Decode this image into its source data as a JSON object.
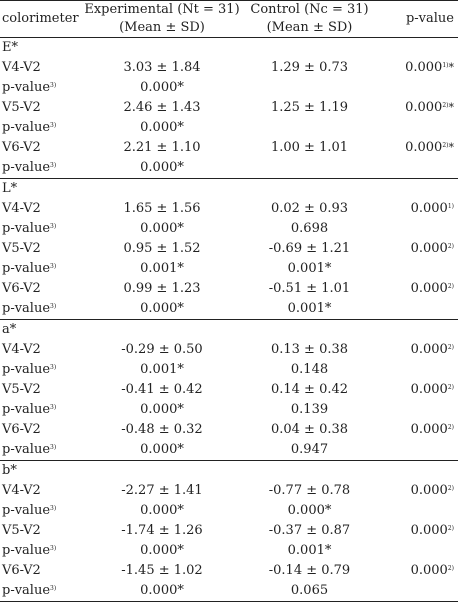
{
  "header": {
    "col_label": "colorimeter",
    "exp_line1": "Experimental (Nt = 31)",
    "exp_line2": "(Mean ± SD)",
    "ctrl_line1": "Control (Nc = 31)",
    "ctrl_line2": "(Mean ± SD)",
    "pvalue_label": "p-value"
  },
  "sections": [
    {
      "title": "E*",
      "rows": [
        {
          "label": "V4-V2",
          "exp": "3.03 ± 1.84",
          "ctrl": "1.29 ± 0.73",
          "p": "0.000",
          "p_sup": "1)",
          "p_star": "*"
        },
        {
          "label": "p-value",
          "label_sup": "3)",
          "exp": "0.000*",
          "ctrl": "",
          "p": "",
          "p_sup": "",
          "p_star": ""
        },
        {
          "label": "V5-V2",
          "exp": "2.46 ± 1.43",
          "ctrl": "1.25 ± 1.19",
          "p": "0.000",
          "p_sup": "2)",
          "p_star": "*"
        },
        {
          "label": "p-value",
          "label_sup": "3)",
          "exp": "0.000*",
          "ctrl": "",
          "p": "",
          "p_sup": "",
          "p_star": ""
        },
        {
          "label": "V6-V2",
          "exp": "2.21 ± 1.10",
          "ctrl": "1.00 ± 1.01",
          "p": "0.000",
          "p_sup": "2)",
          "p_star": "*"
        },
        {
          "label": "p-value",
          "label_sup": "3)",
          "exp": "0.000*",
          "ctrl": "",
          "p": "",
          "p_sup": "",
          "p_star": ""
        }
      ]
    },
    {
      "title": "L*",
      "rows": [
        {
          "label": "V4-V2",
          "exp": "1.65 ± 1.56",
          "ctrl": "0.02 ± 0.93",
          "p": "0.000",
          "p_sup": "1)",
          "p_star": ""
        },
        {
          "label": "p-value",
          "label_sup": "3)",
          "exp": "0.000*",
          "ctrl": "0.698",
          "p": "",
          "p_sup": "",
          "p_star": ""
        },
        {
          "label": "V5-V2",
          "exp": "0.95 ± 1.52",
          "ctrl": "-0.69 ± 1.21",
          "p": "0.000",
          "p_sup": "2)",
          "p_star": ""
        },
        {
          "label": "p-value",
          "label_sup": "3)",
          "exp": "0.001*",
          "ctrl": "0.001*",
          "p": "",
          "p_sup": "",
          "p_star": ""
        },
        {
          "label": "V6-V2",
          "exp": "0.99 ± 1.23",
          "ctrl": "-0.51 ± 1.01",
          "p": "0.000",
          "p_sup": "2)",
          "p_star": ""
        },
        {
          "label": "p-value",
          "label_sup": "3)",
          "exp": "0.000*",
          "ctrl": "0.001*",
          "p": "",
          "p_sup": "",
          "p_star": ""
        }
      ]
    },
    {
      "title": "a*",
      "rows": [
        {
          "label": "V4-V2",
          "exp": "-0.29 ± 0.50",
          "ctrl": "0.13 ± 0.38",
          "p": "0.000",
          "p_sup": "2)",
          "p_star": ""
        },
        {
          "label": "p-value",
          "label_sup": "3)",
          "exp": "0.001*",
          "ctrl": "0.148",
          "p": "",
          "p_sup": "",
          "p_star": ""
        },
        {
          "label": "V5-V2",
          "exp": "-0.41 ± 0.42",
          "ctrl": "0.14 ± 0.42",
          "p": "0.000",
          "p_sup": "2)",
          "p_star": ""
        },
        {
          "label": "p-value",
          "label_sup": "3)",
          "exp": "0.000*",
          "ctrl": "0.139",
          "p": "",
          "p_sup": "",
          "p_star": ""
        },
        {
          "label": "V6-V2",
          "exp": "-0.48 ± 0.32",
          "ctrl": "0.04 ± 0.38",
          "p": "0.000",
          "p_sup": "2)",
          "p_star": ""
        },
        {
          "label": "p-value",
          "label_sup": "3)",
          "exp": "0.000*",
          "ctrl": "0.947",
          "p": "",
          "p_sup": "",
          "p_star": ""
        }
      ]
    },
    {
      "title": "b*",
      "rows": [
        {
          "label": "V4-V2",
          "exp": "-2.27 ± 1.41",
          "ctrl": "-0.77 ± 0.78",
          "p": "0.000",
          "p_sup": "2)",
          "p_star": ""
        },
        {
          "label": "p-value",
          "label_sup": "3)",
          "exp": "0.000*",
          "ctrl": "0.000*",
          "p": "",
          "p_sup": "",
          "p_star": ""
        },
        {
          "label": "V5-V2",
          "exp": "-1.74 ± 1.26",
          "ctrl": "-0.37 ± 0.87",
          "p": "0.000",
          "p_sup": "2)",
          "p_star": ""
        },
        {
          "label": "p-value",
          "label_sup": "3)",
          "exp": "0.000*",
          "ctrl": "0.001*",
          "p": "",
          "p_sup": "",
          "p_star": ""
        },
        {
          "label": "V6-V2",
          "exp": "-1.45 ± 1.02",
          "ctrl": "-0.14 ± 0.79",
          "p": "0.000",
          "p_sup": "2)",
          "p_star": ""
        },
        {
          "label": "p-value",
          "label_sup": "3)",
          "exp": "0.000*",
          "ctrl": "0.065",
          "p": "",
          "p_sup": "",
          "p_star": ""
        }
      ]
    }
  ]
}
